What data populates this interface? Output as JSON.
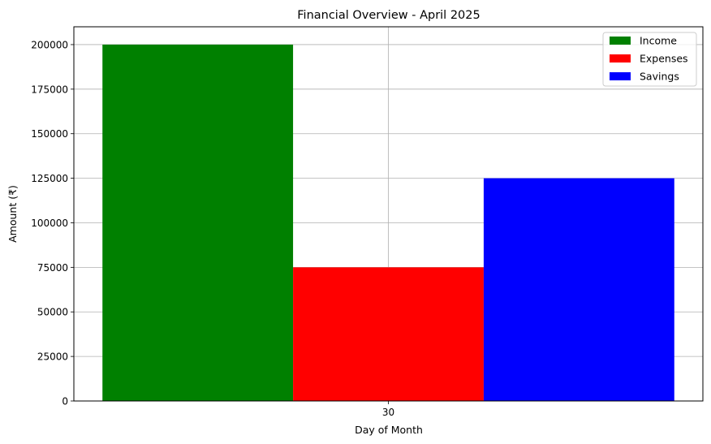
{
  "chart_data": {
    "type": "bar",
    "title": "Financial Overview - April 2025",
    "xlabel": "Day of Month",
    "ylabel": "Amount (₹)",
    "categories": [
      "30"
    ],
    "series": [
      {
        "name": "Income",
        "color": "#008000",
        "values": [
          200000
        ]
      },
      {
        "name": "Expenses",
        "color": "#ff0000",
        "values": [
          75000
        ]
      },
      {
        "name": "Savings",
        "color": "#0000ff",
        "values": [
          125000
        ]
      }
    ],
    "ylim": [
      0,
      210000
    ],
    "yticks": [
      0,
      25000,
      50000,
      75000,
      100000,
      125000,
      150000,
      175000,
      200000
    ],
    "grid": true,
    "legend_position": "top-right"
  }
}
